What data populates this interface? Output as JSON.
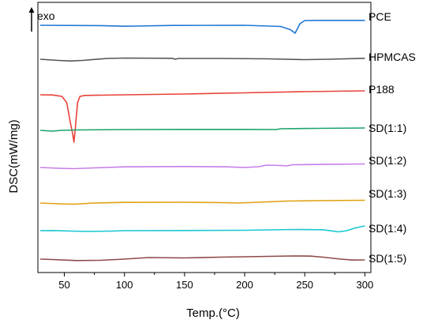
{
  "chart_data": {
    "type": "line",
    "title": "",
    "xlabel": "Temp.(°C)",
    "ylabel": "DSC(mW/mg)",
    "annotation": "exo",
    "xlim": [
      28,
      305
    ],
    "xticks": [
      50,
      100,
      150,
      200,
      250,
      300
    ],
    "grid": false,
    "legend": "right (labels next to each trace)",
    "y_scale": "stacked offset traces, arbitrary units (no numeric ticks shown)",
    "series": [
      {
        "name": "PCE",
        "color": "#1f77d4",
        "points": [
          [
            30,
            0
          ],
          [
            80,
            -0.04
          ],
          [
            100,
            -0.12
          ],
          [
            110,
            -0.1
          ],
          [
            140,
            -0.02
          ],
          [
            200,
            0.0
          ],
          [
            230,
            -0.15
          ],
          [
            238,
            -0.55
          ],
          [
            242,
            -1.0
          ],
          [
            246,
            0.2
          ],
          [
            250,
            0.6
          ],
          [
            260,
            0.62
          ],
          [
            300,
            0.62
          ]
        ]
      },
      {
        "name": "HPMCAS",
        "color": "#555555",
        "points": [
          [
            30,
            0
          ],
          [
            45,
            -0.15
          ],
          [
            55,
            -0.22
          ],
          [
            65,
            -0.15
          ],
          [
            85,
            0.1
          ],
          [
            100,
            0.15
          ],
          [
            140,
            0.12
          ],
          [
            142,
            0.0
          ],
          [
            145,
            0.1
          ],
          [
            180,
            0.1
          ],
          [
            220,
            0.05
          ],
          [
            250,
            -0.05
          ],
          [
            270,
            0.0
          ],
          [
            300,
            0.12
          ]
        ]
      },
      {
        "name": "P188",
        "color": "#e8413a",
        "points": [
          [
            30,
            0
          ],
          [
            40,
            -0.02
          ],
          [
            48,
            -0.2
          ],
          [
            52,
            -1.0
          ],
          [
            55,
            -3.5
          ],
          [
            57,
            -5.0
          ],
          [
            58,
            -6.0
          ],
          [
            59,
            -4.5
          ],
          [
            61,
            -1.0
          ],
          [
            63,
            -0.2
          ],
          [
            67,
            -0.08
          ],
          [
            100,
            0.0
          ],
          [
            150,
            0.1
          ],
          [
            200,
            0.25
          ],
          [
            250,
            0.4
          ],
          [
            300,
            0.5
          ]
        ]
      },
      {
        "name": "SD(1:1)",
        "color": "#1aa36b",
        "points": [
          [
            30,
            0
          ],
          [
            40,
            -0.1
          ],
          [
            48,
            0.0
          ],
          [
            60,
            0.05
          ],
          [
            100,
            0.1
          ],
          [
            150,
            0.12
          ],
          [
            200,
            0.12
          ],
          [
            226,
            0.1
          ],
          [
            230,
            0.2
          ],
          [
            260,
            0.25
          ],
          [
            300,
            0.3
          ]
        ]
      },
      {
        "name": "SD(1:2)",
        "color": "#c77dea",
        "points": [
          [
            30,
            0
          ],
          [
            45,
            -0.1
          ],
          [
            58,
            -0.15
          ],
          [
            75,
            -0.05
          ],
          [
            100,
            0.08
          ],
          [
            150,
            0.12
          ],
          [
            185,
            0.08
          ],
          [
            200,
            0.0
          ],
          [
            212,
            0.1
          ],
          [
            218,
            0.3
          ],
          [
            230,
            0.25
          ],
          [
            235,
            0.2
          ],
          [
            240,
            0.35
          ],
          [
            260,
            0.38
          ],
          [
            300,
            0.45
          ]
        ]
      },
      {
        "name": "SD(1:3)",
        "color": "#e0a010",
        "points": [
          [
            30,
            0
          ],
          [
            45,
            -0.1
          ],
          [
            58,
            -0.15
          ],
          [
            75,
            0.0
          ],
          [
            100,
            0.08
          ],
          [
            150,
            0.1
          ],
          [
            180,
            0.05
          ],
          [
            195,
            0.0
          ],
          [
            220,
            0.15
          ],
          [
            235,
            0.25
          ],
          [
            260,
            0.3
          ],
          [
            300,
            0.35
          ]
        ]
      },
      {
        "name": "SD(1:4)",
        "color": "#19c7d0",
        "points": [
          [
            30,
            0
          ],
          [
            40,
            0.02
          ],
          [
            55,
            -0.05
          ],
          [
            70,
            -0.1
          ],
          [
            90,
            -0.05
          ],
          [
            100,
            0.0
          ],
          [
            150,
            0.02
          ],
          [
            200,
            0.05
          ],
          [
            240,
            0.15
          ],
          [
            265,
            0.12
          ],
          [
            278,
            -0.15
          ],
          [
            285,
            0.0
          ],
          [
            292,
            0.35
          ],
          [
            300,
            0.6
          ]
        ]
      },
      {
        "name": "SD(1:5)",
        "color": "#8e4a4a",
        "points": [
          [
            30,
            0
          ],
          [
            40,
            -0.05
          ],
          [
            60,
            -0.18
          ],
          [
            80,
            -0.15
          ],
          [
            100,
            0.0
          ],
          [
            120,
            0.2
          ],
          [
            150,
            0.15
          ],
          [
            180,
            0.25
          ],
          [
            220,
            0.35
          ],
          [
            240,
            0.4
          ],
          [
            255,
            0.38
          ],
          [
            265,
            0.25
          ],
          [
            280,
            0.0
          ],
          [
            290,
            -0.12
          ],
          [
            300,
            -0.1
          ]
        ]
      }
    ]
  }
}
